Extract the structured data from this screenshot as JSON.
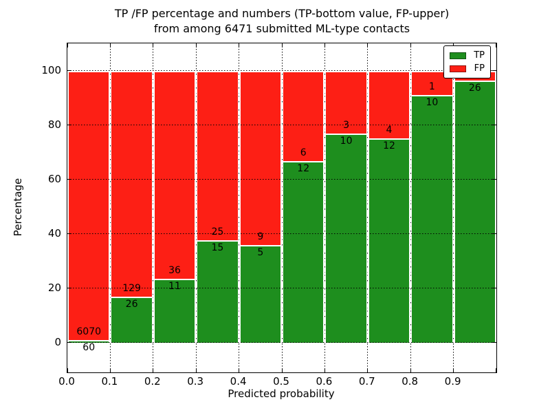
{
  "title": {
    "line1": "TP /FP percentage and numbers (TP-bottom value, FP-upper)",
    "line2": "from among 6471 submitted ML-type contacts"
  },
  "axes": {
    "ylabel": "Percentage",
    "xlabel": "Predicted probability",
    "yticks": [
      0,
      20,
      40,
      60,
      80,
      100
    ],
    "xticks": [
      "0.0",
      "0.1",
      "0.2",
      "0.3",
      "0.4",
      "0.5",
      "0.6",
      "0.7",
      "0.8",
      "0.9"
    ]
  },
  "legend": {
    "items": [
      {
        "label": "TP",
        "color": "#1e8e1e"
      },
      {
        "label": "FP",
        "color": "#fd1f15"
      }
    ]
  },
  "colors": {
    "tp_green": "#1e8e1e",
    "fp_red": "#fd1f15",
    "bar_edge": "#ffffff",
    "grid": "#000000"
  },
  "chart_data": {
    "type": "bar",
    "stacked": true,
    "normalized_to_percent": true,
    "title": "TP /FP percentage and numbers (TP-bottom value, FP-upper) from among 6471 submitted ML-type contacts",
    "xlabel": "Predicted probability",
    "ylabel": "Percentage",
    "xlim": [
      0.0,
      1.0
    ],
    "ylim": [
      -11,
      110
    ],
    "grid": "dotted",
    "legend_position": "upper right",
    "bin_edges": [
      0.0,
      0.1,
      0.2,
      0.3,
      0.4,
      0.5,
      0.6,
      0.7,
      0.8,
      0.9,
      1.0
    ],
    "series": [
      {
        "name": "TP",
        "color": "#1e8e1e",
        "counts": [
          60,
          26,
          11,
          15,
          5,
          12,
          10,
          12,
          10,
          26
        ]
      },
      {
        "name": "FP",
        "color": "#fd1f15",
        "counts": [
          6070,
          129,
          36,
          25,
          9,
          6,
          3,
          4,
          1,
          1
        ]
      }
    ],
    "tp_percent": [
      0.98,
      16.77,
      23.4,
      37.5,
      35.71,
      66.67,
      76.92,
      75.0,
      90.91,
      96.3
    ],
    "tp_labels": [
      "60",
      "26",
      "11",
      "15",
      "5",
      "12",
      "10",
      "12",
      "10",
      "26"
    ],
    "fp_labels": [
      "6070",
      "129",
      "36",
      "25",
      "9",
      "6",
      "3",
      "4",
      "1",
      ""
    ],
    "total_contacts": 6471
  }
}
